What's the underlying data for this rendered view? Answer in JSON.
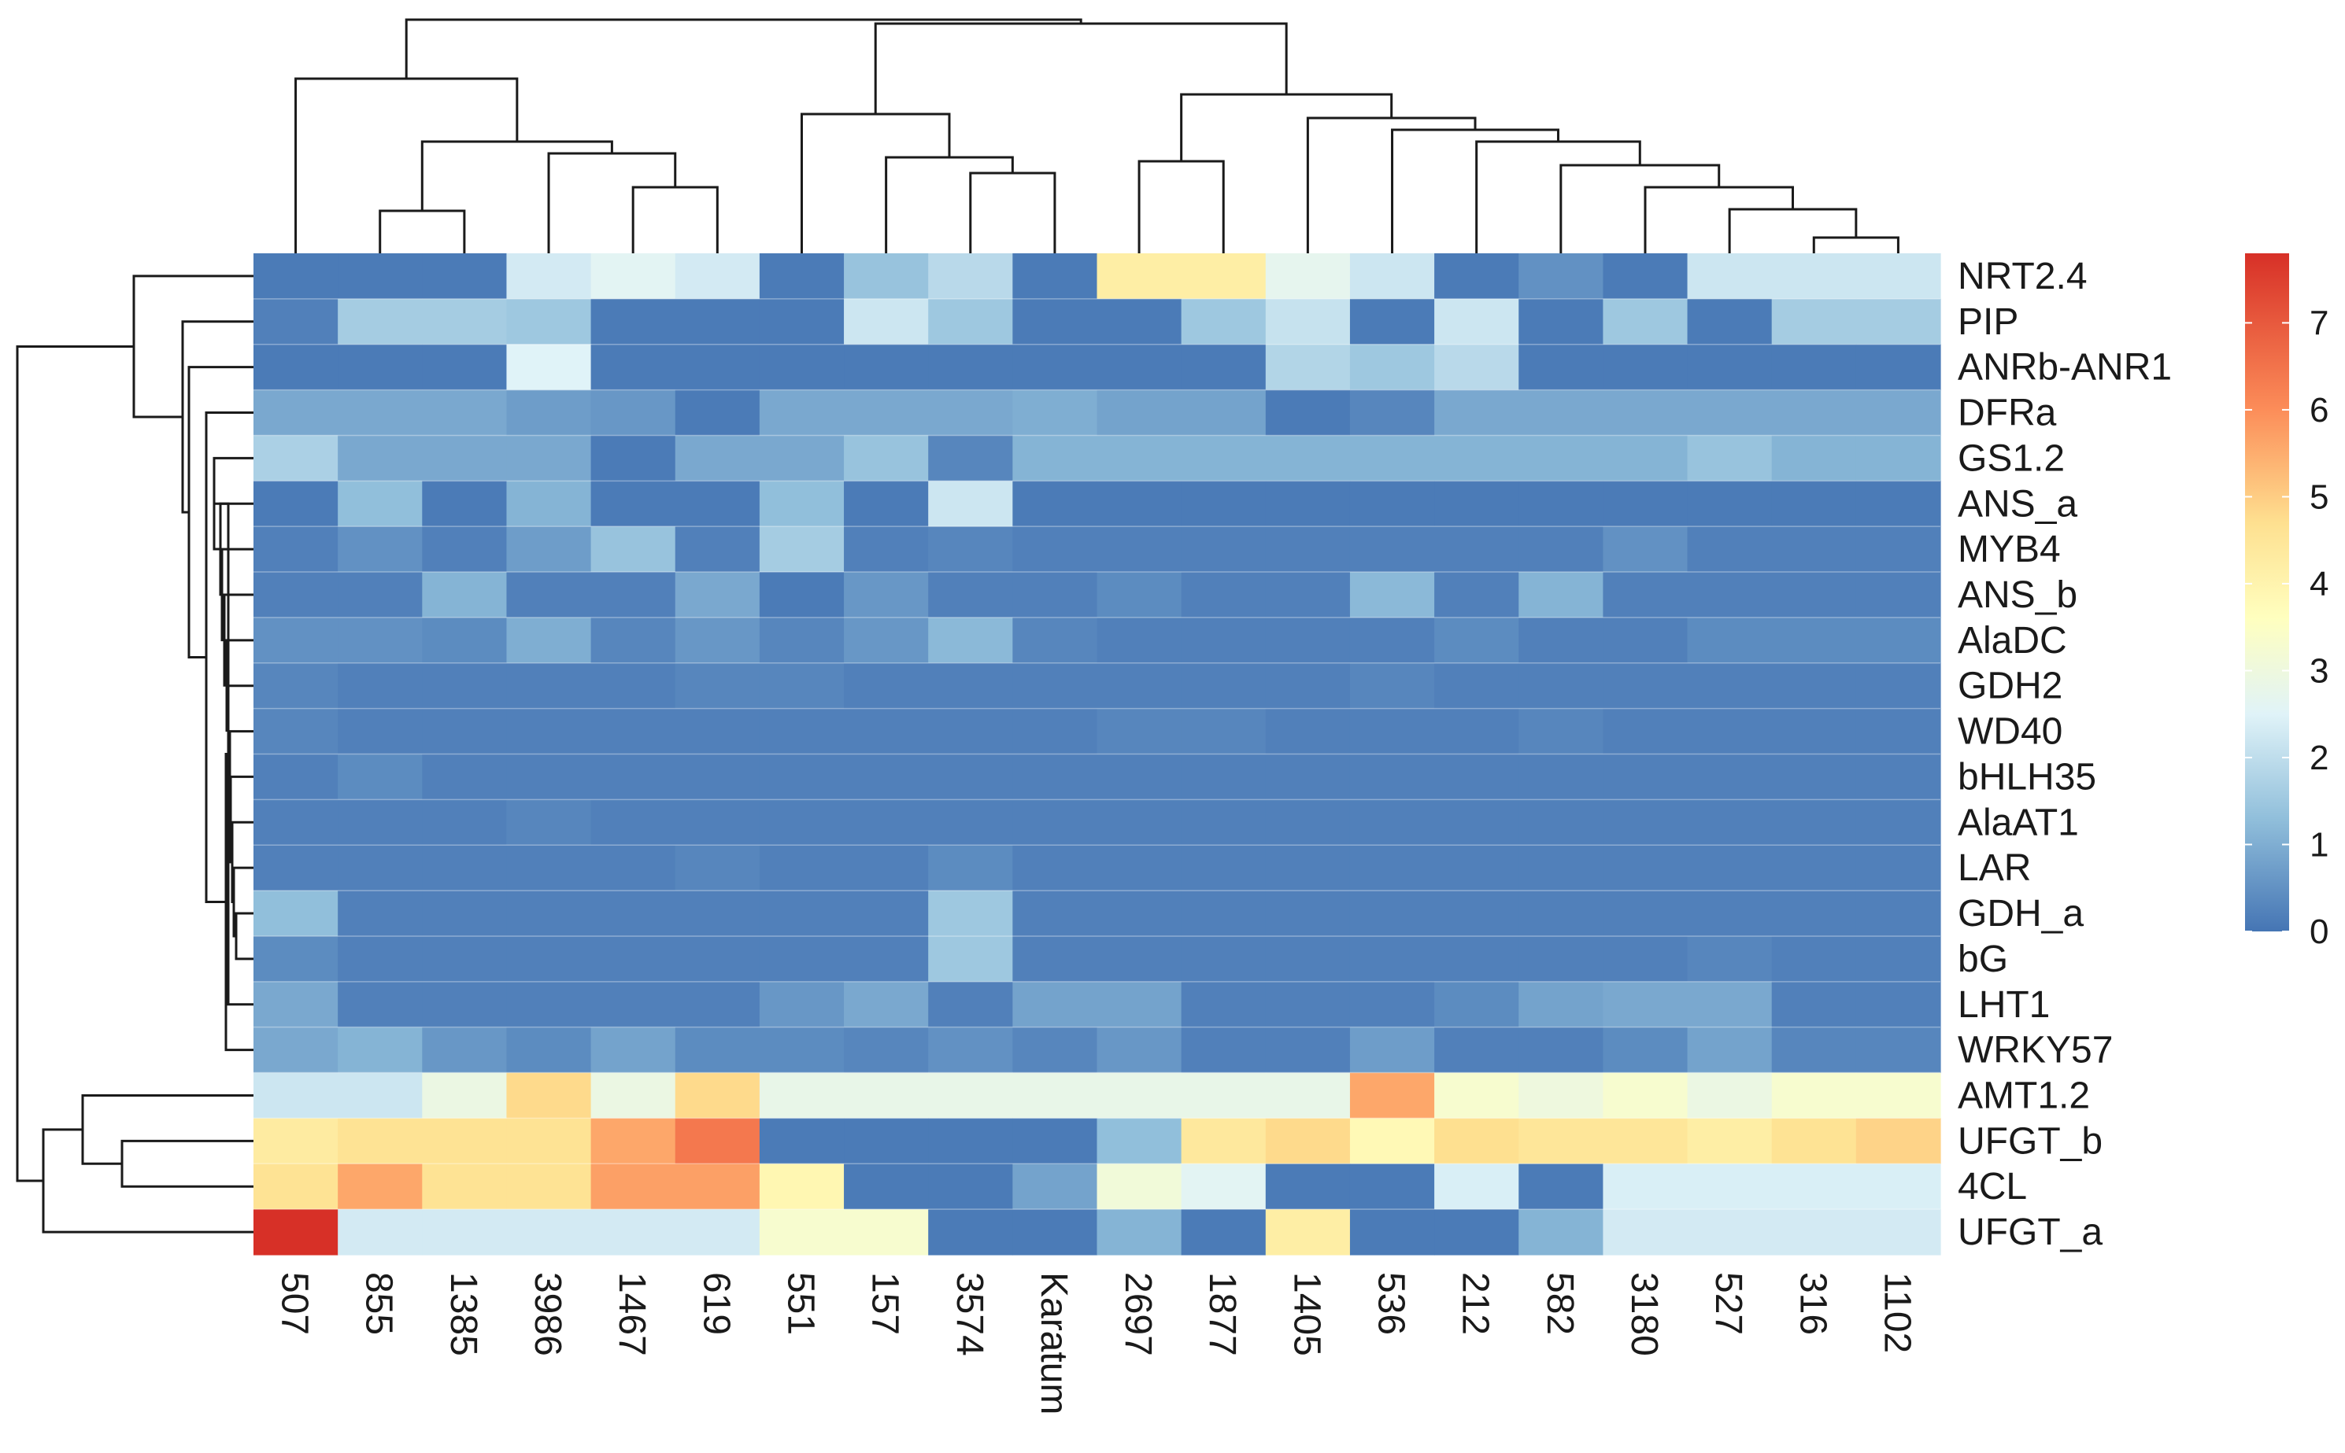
{
  "chart_data": {
    "type": "heatmap",
    "title": "",
    "rows": [
      "NRT2.4",
      "PIP",
      "ANRb-ANR1",
      "DFRa",
      "GS1.2",
      "ANS_a",
      "MYB4",
      "ANS_b",
      "AlaDC",
      "GDH2",
      "WD40",
      "bHLH35",
      "AlaAT1",
      "LAR",
      "GDH_a",
      "bG",
      "LHT1",
      "WRKY57",
      "AMT1.2",
      "UFGT_b",
      "4CL",
      "UFGT_a"
    ],
    "columns": [
      "507",
      "855",
      "1385",
      "3986",
      "1467",
      "619",
      "551",
      "157",
      "3574",
      "Karatum",
      "2697",
      "1877",
      "1405",
      "536",
      "212",
      "582",
      "3180",
      "527",
      "316",
      "1102"
    ],
    "values": [
      [
        0.1,
        0.1,
        0.1,
        2.3,
        2.6,
        2.3,
        0.1,
        1.4,
        1.9,
        0.1,
        4.2,
        4.2,
        2.7,
        2.2,
        0.1,
        0.5,
        0.1,
        2.2,
        2.2,
        2.2
      ],
      [
        0.2,
        1.6,
        1.6,
        1.5,
        0.1,
        0.1,
        0.1,
        2.2,
        1.5,
        0.1,
        0.1,
        1.5,
        2.1,
        0.1,
        2.2,
        0.1,
        1.5,
        0.1,
        1.6,
        1.6
      ],
      [
        0.1,
        0.1,
        0.1,
        2.5,
        0.1,
        0.1,
        0.1,
        0.1,
        0.1,
        0.1,
        0.1,
        0.1,
        1.8,
        1.5,
        1.9,
        0.1,
        0.1,
        0.1,
        0.1,
        0.1
      ],
      [
        0.9,
        0.9,
        0.9,
        0.7,
        0.6,
        0.1,
        0.9,
        0.9,
        0.9,
        1.0,
        0.8,
        0.8,
        0.1,
        0.3,
        0.9,
        0.9,
        0.9,
        0.9,
        0.9,
        0.9
      ],
      [
        1.7,
        0.9,
        0.9,
        0.9,
        0.1,
        0.9,
        0.9,
        1.4,
        0.3,
        1.1,
        1.1,
        1.1,
        1.1,
        1.1,
        1.1,
        1.1,
        1.1,
        1.4,
        1.1,
        1.1
      ],
      [
        0.1,
        1.3,
        0.1,
        1.1,
        0.1,
        0.1,
        1.3,
        0.1,
        2.2,
        0.1,
        0.1,
        0.1,
        0.1,
        0.1,
        0.1,
        0.1,
        0.1,
        0.1,
        0.1,
        0.1
      ],
      [
        0.2,
        0.5,
        0.2,
        0.7,
        1.4,
        0.2,
        1.6,
        0.2,
        0.3,
        0.2,
        0.2,
        0.2,
        0.2,
        0.2,
        0.2,
        0.2,
        0.5,
        0.2,
        0.2,
        0.2
      ],
      [
        0.2,
        0.2,
        1.1,
        0.2,
        0.2,
        0.9,
        0.1,
        0.6,
        0.2,
        0.2,
        0.4,
        0.2,
        0.2,
        1.2,
        0.2,
        1.1,
        0.2,
        0.2,
        0.2,
        0.2
      ],
      [
        0.5,
        0.5,
        0.4,
        1.0,
        0.3,
        0.6,
        0.3,
        0.6,
        1.2,
        0.3,
        0.2,
        0.2,
        0.2,
        0.2,
        0.4,
        0.2,
        0.2,
        0.4,
        0.4,
        0.4
      ],
      [
        0.3,
        0.2,
        0.2,
        0.2,
        0.2,
        0.3,
        0.3,
        0.2,
        0.2,
        0.2,
        0.2,
        0.2,
        0.2,
        0.3,
        0.2,
        0.2,
        0.2,
        0.2,
        0.2,
        0.2
      ],
      [
        0.3,
        0.2,
        0.2,
        0.2,
        0.2,
        0.2,
        0.2,
        0.2,
        0.2,
        0.2,
        0.3,
        0.3,
        0.2,
        0.2,
        0.2,
        0.3,
        0.2,
        0.2,
        0.2,
        0.2
      ],
      [
        0.2,
        0.4,
        0.2,
        0.2,
        0.2,
        0.2,
        0.2,
        0.2,
        0.2,
        0.2,
        0.2,
        0.2,
        0.2,
        0.2,
        0.2,
        0.2,
        0.2,
        0.2,
        0.2,
        0.2
      ],
      [
        0.2,
        0.2,
        0.2,
        0.3,
        0.2,
        0.2,
        0.2,
        0.2,
        0.2,
        0.2,
        0.2,
        0.2,
        0.2,
        0.2,
        0.2,
        0.2,
        0.2,
        0.2,
        0.2,
        0.2
      ],
      [
        0.2,
        0.2,
        0.2,
        0.2,
        0.2,
        0.3,
        0.2,
        0.2,
        0.4,
        0.2,
        0.2,
        0.2,
        0.2,
        0.2,
        0.2,
        0.2,
        0.2,
        0.2,
        0.2,
        0.2
      ],
      [
        1.3,
        0.2,
        0.2,
        0.2,
        0.2,
        0.2,
        0.2,
        0.2,
        1.5,
        0.2,
        0.2,
        0.2,
        0.2,
        0.2,
        0.2,
        0.2,
        0.2,
        0.2,
        0.2,
        0.2
      ],
      [
        0.4,
        0.2,
        0.2,
        0.2,
        0.2,
        0.2,
        0.2,
        0.2,
        1.5,
        0.2,
        0.2,
        0.2,
        0.2,
        0.2,
        0.2,
        0.2,
        0.2,
        0.3,
        0.2,
        0.2
      ],
      [
        0.9,
        0.2,
        0.2,
        0.2,
        0.2,
        0.2,
        0.6,
        0.9,
        0.2,
        0.8,
        0.8,
        0.2,
        0.2,
        0.2,
        0.4,
        0.8,
        0.9,
        0.9,
        0.2,
        0.2
      ],
      [
        0.9,
        1.1,
        0.6,
        0.4,
        0.8,
        0.4,
        0.4,
        0.3,
        0.5,
        0.3,
        0.6,
        0.2,
        0.2,
        0.7,
        0.2,
        0.2,
        0.4,
        0.8,
        0.3,
        0.3
      ],
      [
        2.2,
        2.2,
        2.9,
        4.8,
        2.9,
        4.8,
        2.8,
        2.8,
        2.8,
        2.8,
        2.8,
        2.8,
        2.8,
        5.6,
        3.3,
        3.0,
        3.3,
        2.9,
        3.3,
        3.3
      ],
      [
        4.3,
        4.6,
        4.6,
        4.6,
        5.6,
        6.4,
        0.1,
        0.1,
        0.1,
        0.1,
        1.3,
        4.4,
        4.8,
        3.8,
        4.7,
        4.5,
        4.5,
        4.2,
        4.6,
        4.9
      ],
      [
        4.6,
        5.6,
        4.6,
        4.6,
        5.7,
        5.7,
        3.9,
        0.1,
        0.1,
        0.8,
        3.1,
        2.6,
        0.1,
        0.1,
        2.4,
        0.1,
        2.4,
        2.4,
        2.4,
        2.4
      ],
      [
        7.8,
        2.3,
        2.3,
        2.3,
        2.3,
        2.3,
        3.3,
        3.3,
        0.1,
        0.1,
        1.1,
        0.1,
        4.2,
        0.1,
        0.1,
        1.1,
        2.3,
        2.3,
        2.3,
        2.3
      ]
    ],
    "color_scale": {
      "min": 0,
      "max": 7.8,
      "colors": [
        "#4575b4",
        "#91bfdb",
        "#e0f3f8",
        "#ffffbf",
        "#fee090",
        "#fc8d59",
        "#d73027"
      ],
      "stops": [
        0,
        1.3,
        2.5,
        3.6,
        4.7,
        6.0,
        7.8
      ]
    },
    "legend": {
      "position": "right",
      "ticks": [
        "0",
        "1",
        "2",
        "3",
        "4",
        "5",
        "6",
        "7"
      ]
    }
  }
}
